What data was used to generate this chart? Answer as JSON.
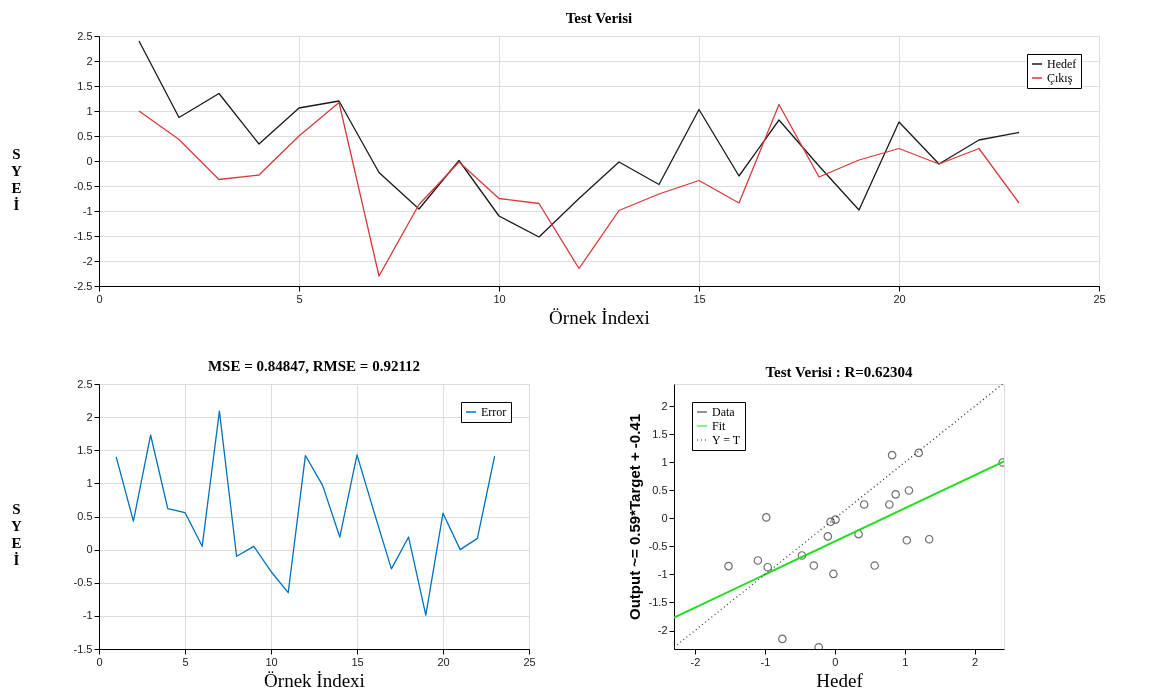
{
  "chart_data": [
    {
      "type": "line",
      "title": "Test Verisi",
      "xlabel": "Örnek İndexi",
      "ylabel": "SYEİ",
      "x": [
        1,
        2,
        3,
        4,
        5,
        6,
        7,
        8,
        9,
        10,
        11,
        12,
        13,
        14,
        15,
        16,
        17,
        18,
        19,
        20,
        21,
        22,
        23
      ],
      "xlim": [
        0,
        25
      ],
      "xticks": [
        0,
        5,
        10,
        15,
        20,
        25
      ],
      "ylim": [
        -2.5,
        2.5
      ],
      "yticks": [
        -2.5,
        -2,
        -1.5,
        -1,
        -0.5,
        0,
        0.5,
        1,
        1.5,
        2,
        2.5
      ],
      "grid": true,
      "legend": "top right",
      "series": [
        {
          "name": "Hedef",
          "color": "#1a1a1a",
          "values": [
            2.4,
            0.87,
            1.35,
            0.34,
            1.06,
            1.2,
            -0.23,
            -0.96,
            0.01,
            -1.1,
            -1.52,
            -0.75,
            -0.02,
            -0.47,
            1.03,
            -0.3,
            0.82,
            -0.1,
            -0.98,
            0.78,
            -0.06,
            0.42,
            0.57
          ]
        },
        {
          "name": "Çıkış",
          "color": "#d9393b",
          "values": [
            1.0,
            0.43,
            -0.37,
            -0.28,
            0.5,
            1.17,
            -2.3,
            -0.87,
            -0.02,
            -0.75,
            -0.85,
            -2.15,
            -0.99,
            -0.66,
            -0.39,
            -0.84,
            1.13,
            -0.32,
            0.02,
            0.25,
            -0.06,
            0.25,
            -0.84
          ]
        }
      ]
    },
    {
      "type": "line",
      "title": "MSE = 0.84847, RMSE = 0.92112",
      "xlabel": "Örnek İndexi",
      "ylabel": "SYEİ",
      "x": [
        1,
        2,
        3,
        4,
        5,
        6,
        7,
        8,
        9,
        10,
        11,
        12,
        13,
        14,
        15,
        16,
        17,
        18,
        19,
        20,
        21,
        22,
        23
      ],
      "xlim": [
        0,
        25
      ],
      "xticks": [
        0,
        5,
        10,
        15,
        20,
        25
      ],
      "ylim": [
        -1.5,
        2.5
      ],
      "yticks": [
        -1.5,
        -1,
        -0.5,
        0,
        0.5,
        1,
        1.5,
        2,
        2.5
      ],
      "grid": true,
      "legend": "top right",
      "series": [
        {
          "name": "Error",
          "color": "#0072bd",
          "values": [
            1.4,
            0.43,
            1.73,
            0.62,
            0.56,
            0.05,
            2.09,
            -0.1,
            0.05,
            -0.33,
            -0.65,
            1.42,
            0.97,
            0.19,
            1.43,
            0.56,
            -0.29,
            0.19,
            -0.99,
            0.55,
            0,
            0.17,
            1.41
          ]
        }
      ]
    },
    {
      "type": "scatter",
      "title": "Test Verisi : R=0.62304",
      "xlabel": "Hedef",
      "ylabel": "Output ~= 0.59*Target + -0.41",
      "xlim": [
        -2.3,
        2.42
      ],
      "xticks": [
        -2,
        -1,
        0,
        1,
        2
      ],
      "ylim": [
        -2.33,
        2.4
      ],
      "yticks": [
        -2,
        -1.5,
        -1,
        -0.5,
        0,
        0.5,
        1,
        1.5,
        2
      ],
      "grid": false,
      "legend": "top left",
      "series": [
        {
          "name": "Data",
          "color": "#333333",
          "marker": "circle",
          "x": [
            2.4,
            0.87,
            1.35,
            0.34,
            1.06,
            1.2,
            -0.23,
            -0.96,
            0.01,
            -1.1,
            -1.52,
            -0.75,
            -0.02,
            -0.47,
            1.03,
            -0.3,
            0.82,
            -0.1,
            -0.98,
            0.78,
            -0.06,
            0.42,
            0.57
          ],
          "values": [
            1.0,
            0.43,
            -0.37,
            -0.28,
            0.5,
            1.17,
            -2.3,
            -0.87,
            -0.02,
            -0.75,
            -0.85,
            -2.15,
            -0.99,
            -0.66,
            -0.39,
            -0.84,
            1.13,
            -0.32,
            0.02,
            0.25,
            -0.06,
            0.25,
            -0.84
          ]
        },
        {
          "name": "Fit",
          "type": "line",
          "color": "#22dd22",
          "x": [
            -2.3,
            2.42
          ],
          "values": [
            -1.77,
            1.02
          ]
        },
        {
          "name": "Y = T",
          "type": "line",
          "line_style": "dotted",
          "color": "#333333",
          "x": [
            -2.3,
            2.4
          ],
          "values": [
            -2.3,
            2.4
          ]
        }
      ]
    }
  ]
}
